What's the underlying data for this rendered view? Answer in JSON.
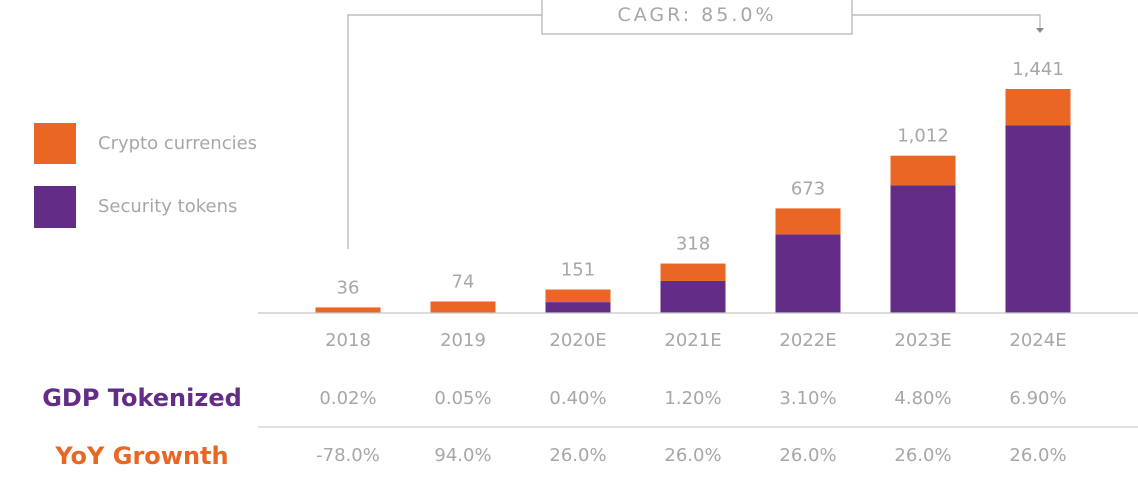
{
  "chart_data": {
    "type": "bar",
    "stacked": true,
    "categories": [
      "2018",
      "2019",
      "2020E",
      "2021E",
      "2022E",
      "2023E",
      "2024E"
    ],
    "totals": [
      36,
      74,
      151,
      318,
      673,
      1012,
      1441
    ],
    "total_labels": [
      "36",
      "74",
      "151",
      "318",
      "673",
      "1,012",
      "1,441"
    ],
    "series": [
      {
        "name": "Security tokens",
        "color": "#632c86",
        "values": [
          0,
          0,
          70,
          206,
          506,
          822,
          1208
        ]
      },
      {
        "name": "Crypto currencies",
        "color": "#ea6625",
        "values": [
          36,
          74,
          81,
          112,
          167,
          190,
          233
        ]
      }
    ],
    "legend": {
      "position": "left",
      "order": [
        "Crypto currencies",
        "Security tokens"
      ]
    },
    "cagr_label": "CAGR: 85.0%",
    "gdp_row": {
      "label": "GDP Tokenized",
      "color": "#632c86",
      "values": [
        "0.02%",
        "0.05%",
        "0.40%",
        "1.20%",
        "3.10%",
        "4.80%",
        "6.90%"
      ]
    },
    "yoy_row": {
      "label": "YoY Grownth",
      "color": "#ea6625",
      "values": [
        "-78.0%",
        "94.0%",
        "26.0%",
        "26.0%",
        "26.0%",
        "26.0%",
        "26.0%"
      ]
    },
    "ylim": [
      0,
      1441
    ],
    "grid": false
  }
}
